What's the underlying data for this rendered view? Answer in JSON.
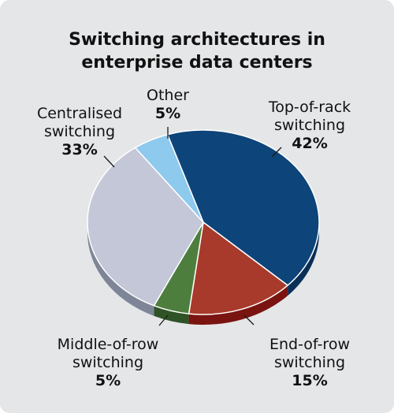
{
  "chart_data": {
    "type": "pie",
    "title_lines": [
      "Switching architectures in",
      "enterprise data centers"
    ],
    "slices": [
      {
        "name_lines": [
          "Top-of-rack",
          "switching"
        ],
        "pct_label": "42%",
        "value": 42,
        "color": "#0d4479",
        "side_color": "#0a2f57"
      },
      {
        "name_lines": [
          "End-of-row",
          "switching"
        ],
        "pct_label": "15%",
        "value": 15,
        "color": "#a83a2b",
        "side_color": "#7a1410"
      },
      {
        "name_lines": [
          "Middle-of-row",
          "switching"
        ],
        "pct_label": "5%",
        "value": 5,
        "color": "#4e7e3e",
        "side_color": "#2f5326"
      },
      {
        "name_lines": [
          "Centralised",
          "switching"
        ],
        "pct_label": "33%",
        "value": 33,
        "color": "#c3c7d8",
        "side_color": "#7e8597"
      },
      {
        "name_lines": [
          "Other"
        ],
        "pct_label": "5%",
        "value": 5,
        "color": "#8ec9ee",
        "side_color": "#5f8fb0"
      }
    ],
    "legend": "labels placed around the pie"
  }
}
